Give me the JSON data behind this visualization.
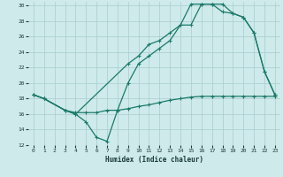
{
  "xlabel": "Humidex (Indice chaleur)",
  "bg_color": "#ceeaea",
  "grid_color": "#a8cccc",
  "line_color": "#1a7a6a",
  "xlim": [
    -0.5,
    23.5
  ],
  "ylim": [
    12,
    30.5
  ],
  "xticks": [
    0,
    1,
    2,
    3,
    4,
    5,
    6,
    7,
    8,
    9,
    10,
    11,
    12,
    13,
    14,
    15,
    16,
    17,
    18,
    19,
    20,
    21,
    22,
    23
  ],
  "yticks": [
    12,
    14,
    16,
    18,
    20,
    22,
    24,
    26,
    28,
    30
  ],
  "line1_x": [
    0,
    1,
    3,
    4,
    5,
    6,
    7,
    8,
    9,
    10,
    11,
    12,
    13,
    14,
    15,
    16,
    17,
    18,
    19,
    20,
    21,
    22,
    23
  ],
  "line1_y": [
    18.5,
    18.0,
    16.5,
    16.0,
    15.0,
    13.0,
    12.5,
    16.5,
    20.0,
    22.5,
    23.5,
    24.5,
    25.5,
    27.5,
    27.5,
    30.2,
    30.2,
    30.2,
    29.0,
    28.5,
    26.5,
    21.5,
    18.5
  ],
  "line2_x": [
    0,
    1,
    3,
    4,
    5,
    6,
    7,
    8,
    9,
    10,
    11,
    12,
    13,
    14,
    15,
    16,
    17,
    18,
    19,
    20,
    21,
    22,
    23
  ],
  "line2_y": [
    18.5,
    18.0,
    16.5,
    16.2,
    16.2,
    16.2,
    16.5,
    16.5,
    16.7,
    17.0,
    17.2,
    17.5,
    17.8,
    18.0,
    18.2,
    18.3,
    18.3,
    18.3,
    18.3,
    18.3,
    18.3,
    18.3,
    18.3
  ],
  "line3_x": [
    0,
    1,
    3,
    4,
    9,
    10,
    11,
    12,
    13,
    14,
    15,
    16,
    17,
    18,
    19,
    20,
    21,
    22,
    23
  ],
  "line3_y": [
    18.5,
    18.0,
    16.5,
    16.0,
    22.5,
    23.5,
    25.0,
    25.5,
    26.5,
    27.5,
    30.2,
    30.2,
    30.2,
    29.2,
    29.0,
    28.5,
    26.5,
    21.5,
    18.5
  ]
}
